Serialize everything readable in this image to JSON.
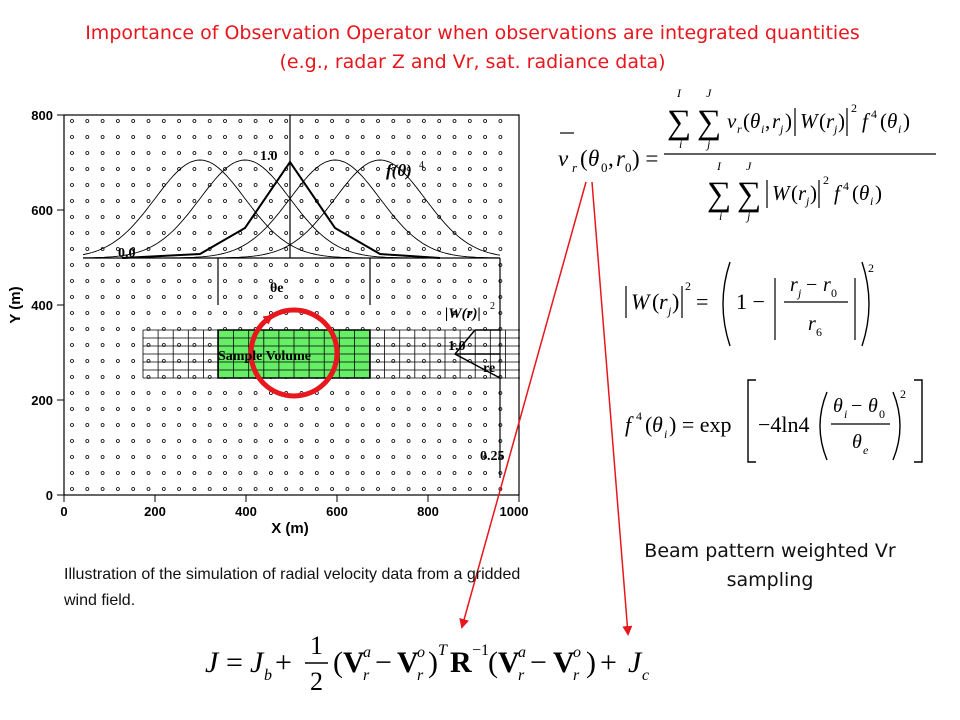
{
  "title": {
    "line1": "Importance of Observation Operator when observations are integrated quantities",
    "line2": "(e.g., radar Z and Vr, sat. radiance data)"
  },
  "figure": {
    "x_axis_label": "X (m)",
    "y_axis_label": "Y (m)",
    "x_ticks": [
      "0",
      "200",
      "400",
      "600",
      "800",
      "1000"
    ],
    "y_ticks": [
      "0",
      "200",
      "400",
      "600",
      "800"
    ],
    "sample_volume_label": "Sample Volume",
    "f_theta_label": "f(θ)",
    "f_theta_sup": "4",
    "w_r_label": "|W(r)|",
    "w_r_sup": "2",
    "theta_e_label": "θe",
    "r_e_label": "re",
    "val_1_top": "1.0",
    "val_0_left": "0.0",
    "val_1_right": "1.0",
    "val_025": "0.25",
    "colors": {
      "sample_volume": "#66ee66",
      "circle": "#e8161d",
      "arrows": "#e8161d"
    }
  },
  "caption": "Illustration of the simulation of radial velocity data from a gridded wind field.",
  "beam_label": "Beam pattern weighted Vr sampling",
  "equations": {
    "vr_mean": "v̄r(θ0,r0) = Σi^I Σj^J vr(θi,rj)|W(rj)|² f⁴(θi) / Σi^I Σj^J |W(rj)|² f⁴(θi)",
    "w_r": "|W(rj)|² = (1 − |(rj − r0)/r6|)²",
    "f_theta": "f⁴(θi) = exp[−4ln4((θi − θ0)/θe)²]",
    "cost": "J = Jb + ½(Vr^a − Vr^o)^T R⁻¹(Vr^a − Vr^o) + Jc"
  }
}
